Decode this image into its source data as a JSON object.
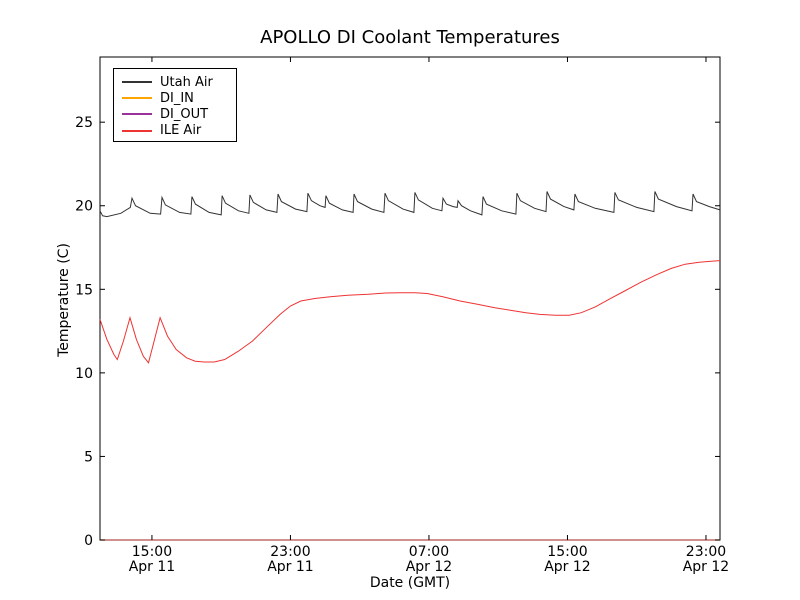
{
  "chart_data": {
    "type": "line",
    "title": "APOLLO DI Coolant Temperatures",
    "xlabel": "Date (GMT)",
    "ylabel": "Temperature (C)",
    "x_axis": {
      "range": [
        12,
        47.81
      ],
      "ticks": [
        {
          "t": 15,
          "time": "15:00",
          "date": "Apr 11"
        },
        {
          "t": 23,
          "time": "23:00",
          "date": "Apr 11"
        },
        {
          "t": 31,
          "time": "07:00",
          "date": "Apr 12"
        },
        {
          "t": 39,
          "time": "15:00",
          "date": "Apr 12"
        },
        {
          "t": 47,
          "time": "23:00",
          "date": "Apr 12"
        }
      ]
    },
    "y_axis": {
      "range": [
        0,
        28.9
      ],
      "ticks": [
        0,
        5,
        10,
        15,
        20,
        25
      ]
    },
    "legend": {
      "position": "upper-left"
    },
    "series": [
      {
        "name": "Utah Air",
        "color": "#333333",
        "width": 1,
        "opacity": 1,
        "points": [
          [
            12,
            19.7
          ],
          [
            12.15,
            19.4
          ],
          [
            12.4,
            19.35
          ],
          [
            13.2,
            19.55
          ],
          [
            13.75,
            19.9
          ],
          [
            13.85,
            20.45
          ],
          [
            14.05,
            20
          ],
          [
            14.9,
            19.55
          ],
          [
            15.5,
            19.5
          ],
          [
            15.58,
            20.5
          ],
          [
            15.78,
            20.05
          ],
          [
            16.6,
            19.6
          ],
          [
            17.25,
            19.5
          ],
          [
            17.31,
            20.55
          ],
          [
            17.51,
            20.1
          ],
          [
            18.3,
            19.6
          ],
          [
            19,
            19.45
          ],
          [
            19.05,
            20.6
          ],
          [
            19.25,
            20.15
          ],
          [
            20,
            19.7
          ],
          [
            20.6,
            19.55
          ],
          [
            20.66,
            20.65
          ],
          [
            20.86,
            20.2
          ],
          [
            21.6,
            19.75
          ],
          [
            22.22,
            19.6
          ],
          [
            22.28,
            20.7
          ],
          [
            22.48,
            20.25
          ],
          [
            23.3,
            19.8
          ],
          [
            23.95,
            19.65
          ],
          [
            24.01,
            20.75
          ],
          [
            24.21,
            20.3
          ],
          [
            24.7,
            20
          ],
          [
            25,
            19.9
          ],
          [
            25.05,
            20.6
          ],
          [
            25.25,
            20.15
          ],
          [
            26,
            19.75
          ],
          [
            26.62,
            19.6
          ],
          [
            26.67,
            20.7
          ],
          [
            26.87,
            20.25
          ],
          [
            27.7,
            19.8
          ],
          [
            28.4,
            19.6
          ],
          [
            28.46,
            20.75
          ],
          [
            28.66,
            20.3
          ],
          [
            29.5,
            19.8
          ],
          [
            30.13,
            19.6
          ],
          [
            30.19,
            20.8
          ],
          [
            30.39,
            20.35
          ],
          [
            31.2,
            19.85
          ],
          [
            31.75,
            19.7
          ],
          [
            31.81,
            20.45
          ],
          [
            32.01,
            20.1
          ],
          [
            32.4,
            19.95
          ],
          [
            32.63,
            19.9
          ],
          [
            32.68,
            20.3
          ],
          [
            32.88,
            20
          ],
          [
            33.4,
            19.7
          ],
          [
            34.06,
            19.45
          ],
          [
            34.12,
            20.55
          ],
          [
            34.32,
            20.1
          ],
          [
            35.2,
            19.7
          ],
          [
            36.02,
            19.5
          ],
          [
            36.08,
            20.75
          ],
          [
            36.28,
            20.3
          ],
          [
            37.1,
            19.85
          ],
          [
            37.76,
            19.65
          ],
          [
            37.82,
            20.85
          ],
          [
            38.02,
            20.4
          ],
          [
            38.8,
            19.95
          ],
          [
            39.37,
            19.75
          ],
          [
            39.43,
            20.7
          ],
          [
            39.63,
            20.25
          ],
          [
            40.6,
            19.85
          ],
          [
            41.68,
            19.6
          ],
          [
            41.74,
            20.8
          ],
          [
            41.94,
            20.35
          ],
          [
            43,
            19.9
          ],
          [
            43.99,
            19.65
          ],
          [
            44.05,
            20.85
          ],
          [
            44.25,
            20.4
          ],
          [
            45.3,
            19.95
          ],
          [
            46.19,
            19.7
          ],
          [
            46.25,
            20.7
          ],
          [
            46.45,
            20.25
          ],
          [
            47.2,
            19.95
          ],
          [
            47.81,
            19.75
          ]
        ]
      },
      {
        "name": "DI_IN",
        "color": "#ffa500",
        "width": 1.2,
        "opacity": 0.9,
        "points": [
          [
            12,
            0
          ],
          [
            47.81,
            0
          ]
        ]
      },
      {
        "name": "DI_OUT",
        "color": "#993399",
        "width": 1.2,
        "opacity": 0.65,
        "points": [
          [
            12,
            0
          ],
          [
            47.81,
            0
          ]
        ]
      },
      {
        "name": "ILE Air",
        "color": "#ee3333",
        "width": 1,
        "opacity": 1,
        "points": [
          [
            12,
            13.2
          ],
          [
            12.4,
            12
          ],
          [
            12.8,
            11.1
          ],
          [
            13,
            10.8
          ],
          [
            13.35,
            11.9
          ],
          [
            13.73,
            13.3
          ],
          [
            14.1,
            12
          ],
          [
            14.5,
            11
          ],
          [
            14.8,
            10.6
          ],
          [
            15.1,
            11.8
          ],
          [
            15.47,
            13.3
          ],
          [
            15.9,
            12.2
          ],
          [
            16.4,
            11.4
          ],
          [
            17,
            10.9
          ],
          [
            17.5,
            10.7
          ],
          [
            18,
            10.65
          ],
          [
            18.6,
            10.65
          ],
          [
            19.2,
            10.8
          ],
          [
            20,
            11.3
          ],
          [
            20.8,
            11.9
          ],
          [
            21.6,
            12.7
          ],
          [
            22.4,
            13.5
          ],
          [
            23,
            14
          ],
          [
            23.6,
            14.3
          ],
          [
            24.4,
            14.45
          ],
          [
            25.3,
            14.55
          ],
          [
            26.3,
            14.65
          ],
          [
            27.5,
            14.7
          ],
          [
            28.5,
            14.78
          ],
          [
            29.3,
            14.8
          ],
          [
            30.2,
            14.8
          ],
          [
            30.9,
            14.75
          ],
          [
            31.8,
            14.55
          ],
          [
            32.8,
            14.3
          ],
          [
            33.8,
            14.1
          ],
          [
            34.8,
            13.9
          ],
          [
            35.7,
            13.75
          ],
          [
            36.6,
            13.6
          ],
          [
            37.4,
            13.5
          ],
          [
            38.3,
            13.45
          ],
          [
            39.1,
            13.45
          ],
          [
            39.8,
            13.6
          ],
          [
            40.6,
            13.95
          ],
          [
            41.4,
            14.4
          ],
          [
            42.3,
            14.9
          ],
          [
            43.2,
            15.4
          ],
          [
            44.1,
            15.85
          ],
          [
            45,
            16.25
          ],
          [
            45.8,
            16.5
          ],
          [
            46.6,
            16.62
          ],
          [
            47.3,
            16.68
          ],
          [
            47.81,
            16.72
          ]
        ]
      }
    ]
  }
}
